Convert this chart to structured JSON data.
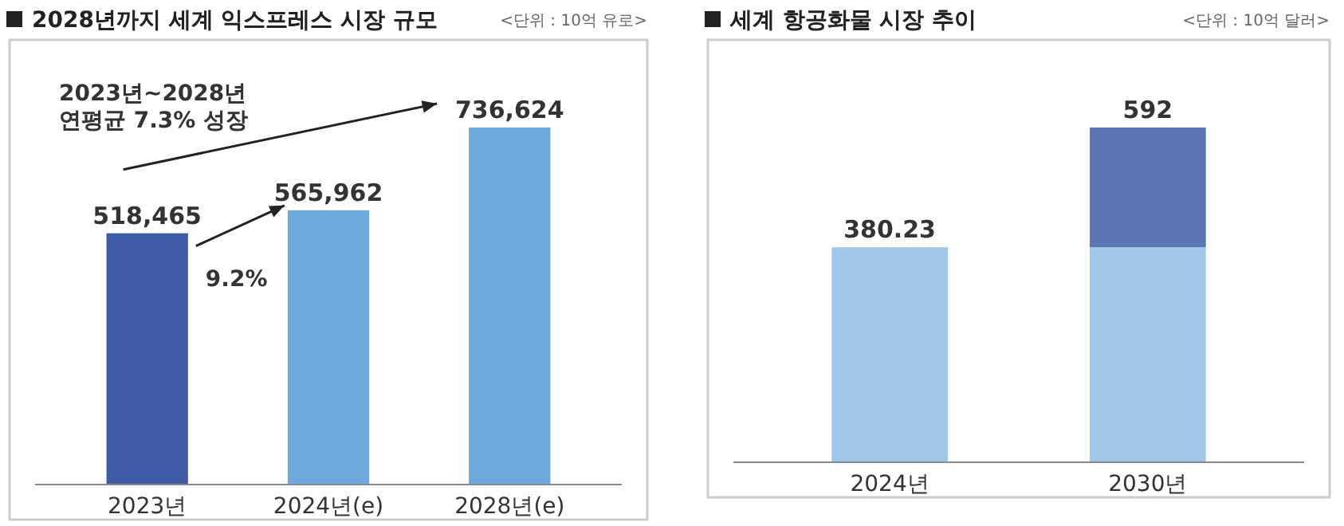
{
  "chart_data": [
    {
      "type": "bar",
      "title": "2028년까지 세계 익스프레스 시장 규모",
      "subtitle": "<단위 : 10억 유로>",
      "categories": [
        "2023년",
        "2024년(e)",
        "2028년(e)"
      ],
      "values": [
        518465,
        565962,
        736624
      ],
      "colors": [
        "#3f5ba6",
        "#6fa8dc",
        "#6fa8dc"
      ],
      "value_labels": [
        "518,465",
        "565,962",
        "736,624"
      ],
      "annotations": [
        "2023년~2028년\n연평균 7.3% 성장",
        "9.2%"
      ],
      "grid": false
    },
    {
      "type": "bar",
      "title": "세계 항공화물 시장 추이",
      "subtitle": "<단위 : 10억 달러>",
      "categories": [
        "2024년",
        "2030년"
      ],
      "stacked": true,
      "series": [
        {
          "color": "#9fc7e8",
          "values": [
            380.23,
            380.23
          ],
          "value_labels": [
            "380.23",
            null
          ]
        },
        {
          "color": "#5b78b4",
          "values": [
            null,
            211.77
          ]
        }
      ],
      "totals": [
        null,
        "592"
      ],
      "grid": false
    }
  ]
}
